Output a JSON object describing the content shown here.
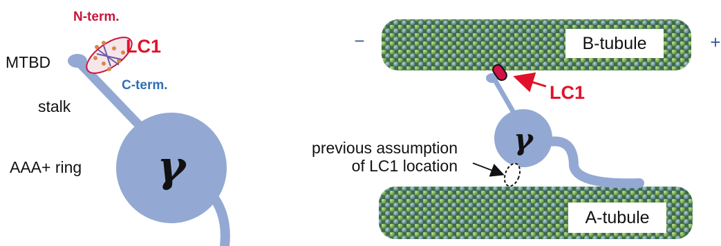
{
  "left_panel": {
    "n_term": "N-term.",
    "lc1": "LC1",
    "mtbd": "MTBD",
    "c_term": "C-term.",
    "stalk": "stalk",
    "aaa_ring": "AAA+ ring",
    "gamma": "γ"
  },
  "right_panel": {
    "minus_end": "−",
    "plus_end": "+",
    "b_tubule": "B-tubule",
    "lc1": "LC1",
    "annotation_line1": "previous assumption",
    "annotation_line2": "of LC1 location",
    "a_tubule": "A-tubule",
    "gamma": "γ"
  }
}
